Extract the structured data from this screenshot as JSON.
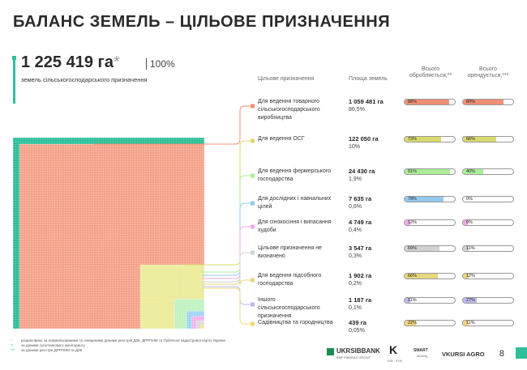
{
  "title": "БАЛАНС ЗЕМЕЛЬ – ЦІЛЬОВЕ ПРИЗНАЧЕННЯ",
  "total": {
    "value": "1 225 419 га",
    "mark": "*",
    "percent": "100%",
    "label": "земель сільськогосподарського призначення"
  },
  "headers": {
    "purpose": "Цільове призначення",
    "area": "Площа земель",
    "cultivated": "Всього обробляється,**",
    "leased": "Всього орендується,***"
  },
  "chart_data": {
    "type": "treemap",
    "categories": [
      "Для ведення товарного сільськогосподарського виробництва",
      "Для ведення ОСГ",
      "Для ведення фермерського господарства",
      "Для дослідних і навчальних цілей",
      "Для сінокосіння і випасання худоби",
      "Цільове призначення не визначено",
      "Для ведення підсобного господарства",
      "Іншого сільськогосподарського призначення",
      "Садівництва та городництва"
    ],
    "area_labels": [
      "1 059 481 га",
      "122 050 га",
      "24 430 га",
      "7 635 га",
      "4 749 га",
      "3 547 га",
      "1 902 га",
      "1 187 га",
      "439 га"
    ],
    "values": [
      1059481,
      122050,
      24430,
      7635,
      4749,
      3547,
      1902,
      1187,
      439
    ],
    "share_labels": [
      "86,5%",
      "10%",
      "1,9%",
      "0,6%",
      "0,4%",
      "0,3%",
      "0,2%",
      "0,1%",
      "0,05%"
    ],
    "cultivated_pct": [
      88,
      73,
      91,
      78,
      12,
      69,
      66,
      11,
      22
    ],
    "leased_pct": [
      80,
      66,
      40,
      0,
      9,
      11,
      12,
      27,
      11
    ],
    "colors": [
      "#f5a58d",
      "#ecec9c",
      "#c2f2c2",
      "#a3d4f5",
      "#f5b3ee",
      "#dcdcdc",
      "#f0e08a",
      "#c9c6f3",
      "#f7d67a"
    ],
    "bar_colors": [
      "#f28f73",
      "#d9d96e",
      "#a9ee9a",
      "#93c9ef",
      "#f0a8ec",
      "#d2d2d2",
      "#e6d67d",
      "#bdb9ef",
      "#f5d47a"
    ],
    "total_color": "#2ec09a"
  },
  "footnotes": [
    "розраховано за нормалізованими та очищеними даними реєстрів ДЗК, ДРРПНМ та Публічної кадастрової карти України",
    "за даними супутникового моніторингу",
    "за даними реєстра ДРРПНМ та ДЗК"
  ],
  "footnote_marks": [
    "*",
    "**",
    "***"
  ],
  "logos": {
    "bank": "UKRSIBBANK",
    "bank_sub": "BNP PARIBAS GROUP",
    "kse_sub": "KSE · KYIV",
    "smart": "SMART",
    "smart_sub": "farming",
    "vkursi": "VKURSI AGRO"
  },
  "page_number": "8"
}
